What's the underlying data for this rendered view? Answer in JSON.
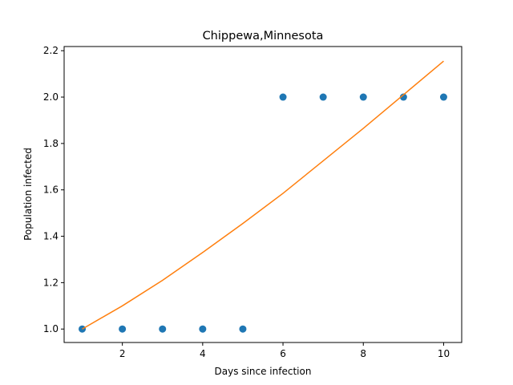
{
  "chart_data": {
    "type": "scatter",
    "title": "Chippewa,Minnesota",
    "xlabel": "Days since infection",
    "ylabel": "Population infected",
    "xlim": [
      0.55,
      10.45
    ],
    "ylim": [
      0.942,
      2.218
    ],
    "xticks": [
      2,
      4,
      6,
      8,
      10
    ],
    "yticks": [
      1.0,
      1.2,
      1.4,
      1.6,
      1.8,
      2.0,
      2.2
    ],
    "xtick_labels": [
      "2",
      "4",
      "6",
      "8",
      "10"
    ],
    "ytick_labels": [
      "1.0",
      "1.2",
      "1.4",
      "1.6",
      "1.8",
      "2.0",
      "2.2"
    ],
    "grid": false,
    "series": [
      {
        "kind": "scatter",
        "color": "#1f77b4",
        "x": [
          1,
          2,
          3,
          4,
          5,
          6,
          7,
          8,
          9,
          10
        ],
        "y": [
          1,
          1,
          1,
          1,
          1,
          2,
          2,
          2,
          2,
          2
        ]
      },
      {
        "kind": "line",
        "color": "#ff7f0e",
        "x": [
          1,
          2,
          3,
          4,
          5,
          6,
          7,
          8,
          9,
          10
        ],
        "y": [
          1.0,
          1.1,
          1.21,
          1.33,
          1.455,
          1.585,
          1.725,
          1.865,
          2.01,
          2.155
        ]
      }
    ]
  }
}
